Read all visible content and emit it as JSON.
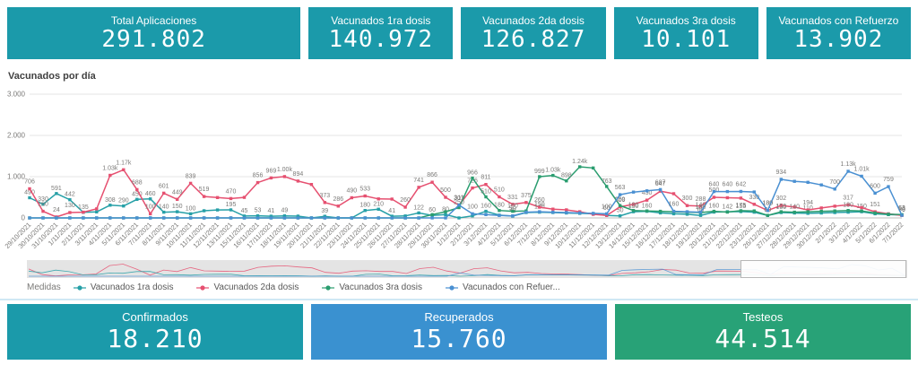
{
  "colors": {
    "kpi_teal": "#1b9aaa",
    "kpi_blue": "#3a91d0",
    "kpi_green": "#28a277",
    "grid": "#e6e6e6",
    "axis_text": "#7b7a78"
  },
  "kpi_top": [
    {
      "label": "Total Aplicaciones",
      "value": "291.802"
    },
    {
      "label": "Vacunados 1ra dosis",
      "value": "140.972"
    },
    {
      "label": "Vacunados 2da dosis",
      "value": "126.827"
    },
    {
      "label": "Vacunados 3ra dosis",
      "value": "10.101"
    },
    {
      "label": "Vacunados con Refuerzo",
      "value": "13.902"
    }
  ],
  "kpi_bottom": [
    {
      "label": "Confirmados",
      "value": "18.210",
      "color": "#1b9aaa"
    },
    {
      "label": "Recuperados",
      "value": "15.760",
      "color": "#3a91d0"
    },
    {
      "label": "Testeos",
      "value": "44.514",
      "color": "#28a277"
    }
  ],
  "legend": {
    "title": "Medidas",
    "items": [
      {
        "label": "Vacunados 1ra dosis"
      },
      {
        "label": "Vacunados 2da dosis"
      },
      {
        "label": "Vacunados 3ra dosis"
      },
      {
        "label": "Vacunados con Refuer..."
      }
    ]
  },
  "chart_data": {
    "type": "line",
    "title": "Vacunados por día",
    "xlabel": "",
    "ylabel": "",
    "ylim": [
      0,
      3000
    ],
    "yticks": [
      "0",
      "1.000",
      "2.000",
      "3.000"
    ],
    "grid": true,
    "legend_position": "bottom",
    "categories": [
      "29/10/2021",
      "30/10/2021",
      "31/10/2021",
      "1/11/2021",
      "2/11/2021",
      "3/11/2021",
      "4/11/2021",
      "5/11/2021",
      "6/11/2021",
      "7/11/2021",
      "8/11/2021",
      "9/11/2021",
      "10/11/2021",
      "11/11/2021",
      "12/11/2021",
      "13/11/2021",
      "15/11/2021",
      "16/11/2021",
      "17/11/2021",
      "18/11/2021",
      "19/11/2021",
      "20/11/2021",
      "21/11/2021",
      "22/11/2021",
      "23/11/2021",
      "24/11/2021",
      "25/11/2021",
      "26/11/2021",
      "27/11/2021",
      "28/11/2021",
      "29/11/2021",
      "30/11/2021",
      "1/12/2021",
      "2/12/2021",
      "3/12/2021",
      "4/12/2021",
      "5/12/2021",
      "6/12/2021",
      "7/12/2021",
      "8/12/2021",
      "9/12/2021",
      "10/12/2021",
      "11/12/2021",
      "12/12/2021",
      "13/12/2021",
      "14/12/2021",
      "15/12/2021",
      "16/12/2021",
      "17/12/2021",
      "18/12/2021",
      "19/12/2021",
      "20/12/2021",
      "21/12/2021",
      "22/12/2021",
      "23/12/2021",
      "26/12/2021",
      "27/12/2021",
      "28/12/2021",
      "29/12/2021",
      "30/12/2021",
      "2/1/2022",
      "3/1/2022",
      "4/1/2022",
      "5/1/2022",
      "6/1/2022",
      "7/1/2022"
    ],
    "series": [
      {
        "name": "Vacunados 1ra dosis",
        "color": "#26a0a7",
        "values": [
          490,
          330,
          591,
          442,
          135,
          145,
          308,
          290,
          450,
          460,
          140,
          150,
          100,
          173,
          194,
          195,
          45,
          53,
          41,
          49,
          44,
          0,
          39,
          0,
          0,
          180,
          210,
          41,
          48,
          122,
          60,
          80,
          0,
          50,
          160,
          68,
          43,
          130,
          140,
          130,
          120,
          110,
          100,
          60,
          50,
          150,
          160,
          122,
          100,
          90,
          60,
          142,
          150,
          155,
          140,
          60,
          130,
          120,
          110,
          120,
          130,
          140,
          150,
          100,
          80,
          70
        ]
      },
      {
        "name": "Vacunados 2da dosis",
        "color": "#e65070",
        "values": [
          706,
          160,
          24,
          130,
          140,
          220,
          1032,
          1167,
          688,
          100,
          601,
          449,
          839,
          519,
          494,
          470,
          497,
          856,
          969,
          1003,
          894,
          810,
          373,
          286,
          490,
          533,
          461,
          456,
          260,
          741,
          866,
          500,
          307,
          726,
          811,
          510,
          331,
          375,
          260,
          213,
          196,
          150,
          86,
          60,
          269,
          328,
          430,
          647,
          586,
          300,
          288,
          500,
          490,
          480,
          330,
          180,
          302,
          262,
          194,
          241,
          284,
          317,
          251,
          151,
          100,
          61
        ]
      },
      {
        "name": "Vacunados 3ra dosis",
        "color": "#2a9d6f",
        "values": [
          0,
          0,
          0,
          0,
          0,
          0,
          0,
          0,
          0,
          0,
          0,
          0,
          0,
          0,
          0,
          0,
          0,
          0,
          0,
          0,
          0,
          0,
          0,
          0,
          0,
          0,
          0,
          0,
          0,
          0,
          80,
          150,
          250,
          966,
          510,
          180,
          160,
          170,
          999,
          1030,
          898,
          1240,
          1210,
          763,
          300,
          180,
          170,
          160,
          150,
          140,
          130,
          160,
          142,
          175,
          170,
          60,
          150,
          140,
          150,
          160,
          170,
          180,
          170,
          120,
          90,
          80
        ]
      },
      {
        "name": "Vacunados con Refuerzo",
        "color": "#4a90d2",
        "values": [
          0,
          0,
          0,
          0,
          0,
          0,
          0,
          0,
          0,
          0,
          0,
          0,
          0,
          0,
          0,
          0,
          0,
          0,
          0,
          0,
          0,
          0,
          0,
          0,
          0,
          0,
          0,
          0,
          0,
          0,
          0,
          0,
          311,
          100,
          80,
          60,
          50,
          140,
          150,
          140,
          130,
          120,
          110,
          100,
          563,
          627,
          657,
          687,
          160,
          150,
          140,
          640,
          640,
          642,
          628,
          180,
          934,
          886,
          862,
          800,
          700,
          1130,
          1010,
          600,
          759,
          63
        ]
      }
    ]
  }
}
